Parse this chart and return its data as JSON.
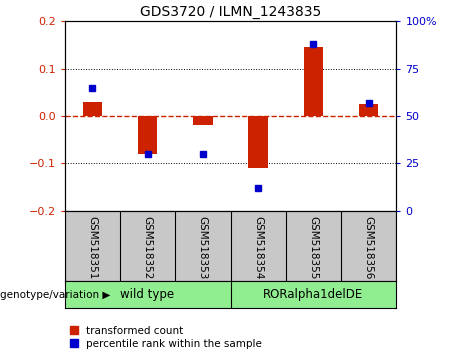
{
  "title": "GDS3720 / ILMN_1243835",
  "samples": [
    "GSM518351",
    "GSM518352",
    "GSM518353",
    "GSM518354",
    "GSM518355",
    "GSM518356"
  ],
  "red_bars": [
    0.03,
    -0.08,
    -0.02,
    -0.11,
    0.145,
    0.025
  ],
  "blue_pct": [
    65,
    30,
    30,
    12,
    88,
    57
  ],
  "ylim_left": [
    -0.2,
    0.2
  ],
  "ylim_right": [
    0,
    100
  ],
  "yticks_left": [
    -0.2,
    -0.1,
    0.0,
    0.1,
    0.2
  ],
  "yticks_right": [
    0,
    25,
    50,
    75,
    100
  ],
  "group1_label": "wild type",
  "group2_label": "RORalpha1delDE",
  "group_label_prefix": "genotype/variation",
  "legend_red": "transformed count",
  "legend_blue": "percentile rank within the sample",
  "bar_color": "#CC2200",
  "dot_color": "#0000CC",
  "zero_line_color": "#CC2200",
  "grid_color": "#000000",
  "bg_color": "#FFFFFF",
  "plot_bg": "#FFFFFF",
  "left_tick_color": "#CC2200",
  "right_tick_color": "#0000CC",
  "bar_width": 0.35,
  "label_bg": "#C8C8C8",
  "group_bg": "#90EE90"
}
